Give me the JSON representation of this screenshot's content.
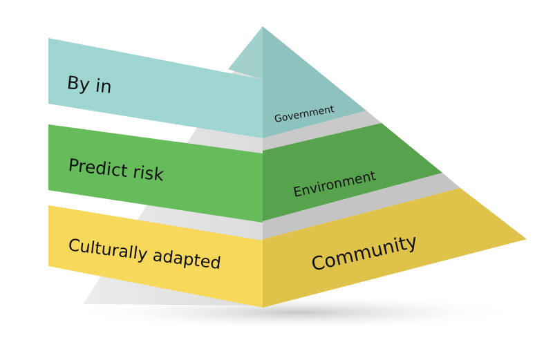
{
  "pyramid": {
    "tiers": [
      {
        "banner_label": "By in",
        "side_label": "Government",
        "color_front": "#9fd6d2",
        "color_side": "#8ec2bf"
      },
      {
        "banner_label": "Predict risk",
        "side_label": "Environment",
        "color_front": "#66bb5a",
        "color_side": "#57a24c"
      },
      {
        "banner_label": "Culturally adapted",
        "side_label": "Community",
        "color_front": "#f6d85a",
        "color_side": "#dfc24a"
      }
    ]
  }
}
